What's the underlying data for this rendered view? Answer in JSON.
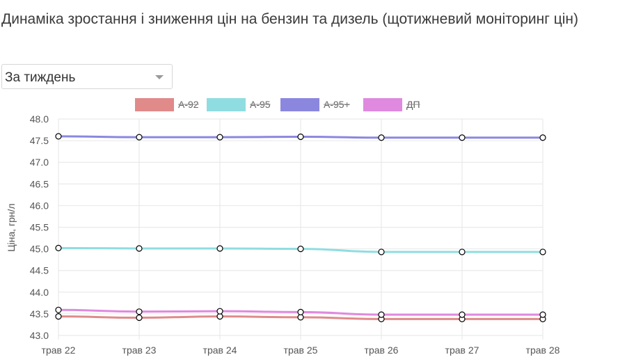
{
  "title": "Динаміка зростання і зниження цін на бензин та дизель (щотижневий моніторинг цін)",
  "period_select": {
    "value": "За тиждень"
  },
  "colors": {
    "grid": "#e6e6e6",
    "point_fill": "#ffffff",
    "point_stroke": "#000000"
  },
  "chart_data": {
    "type": "line",
    "title": "",
    "xlabel": "",
    "ylabel": "Ціна, грн/л",
    "categories": [
      "трав 22",
      "трав 23",
      "трав 24",
      "трав 25",
      "трав 26",
      "трав 27",
      "трав 28"
    ],
    "y_ticks": [
      "48.0",
      "47.5",
      "47.0",
      "46.5",
      "46.0",
      "45.5",
      "45.0",
      "44.5",
      "44.0",
      "43.5",
      "43.0"
    ],
    "ylim": [
      43.0,
      48.0
    ],
    "grid": true,
    "legend_position": "top",
    "series": [
      {
        "name": "А-92",
        "color": "#e08a8a",
        "values": [
          43.44,
          43.41,
          43.44,
          43.42,
          43.38,
          43.38,
          43.38
        ]
      },
      {
        "name": "А-95",
        "color": "#8fdde0",
        "values": [
          45.02,
          45.01,
          45.01,
          45.0,
          44.93,
          44.93,
          44.93
        ]
      },
      {
        "name": "А-95+",
        "color": "#8b87df",
        "values": [
          47.6,
          47.58,
          47.58,
          47.59,
          47.57,
          47.57,
          47.57
        ]
      },
      {
        "name": "ДП",
        "color": "#df8ade",
        "values": [
          43.59,
          43.55,
          43.56,
          43.54,
          43.48,
          43.48,
          43.48
        ]
      }
    ]
  }
}
